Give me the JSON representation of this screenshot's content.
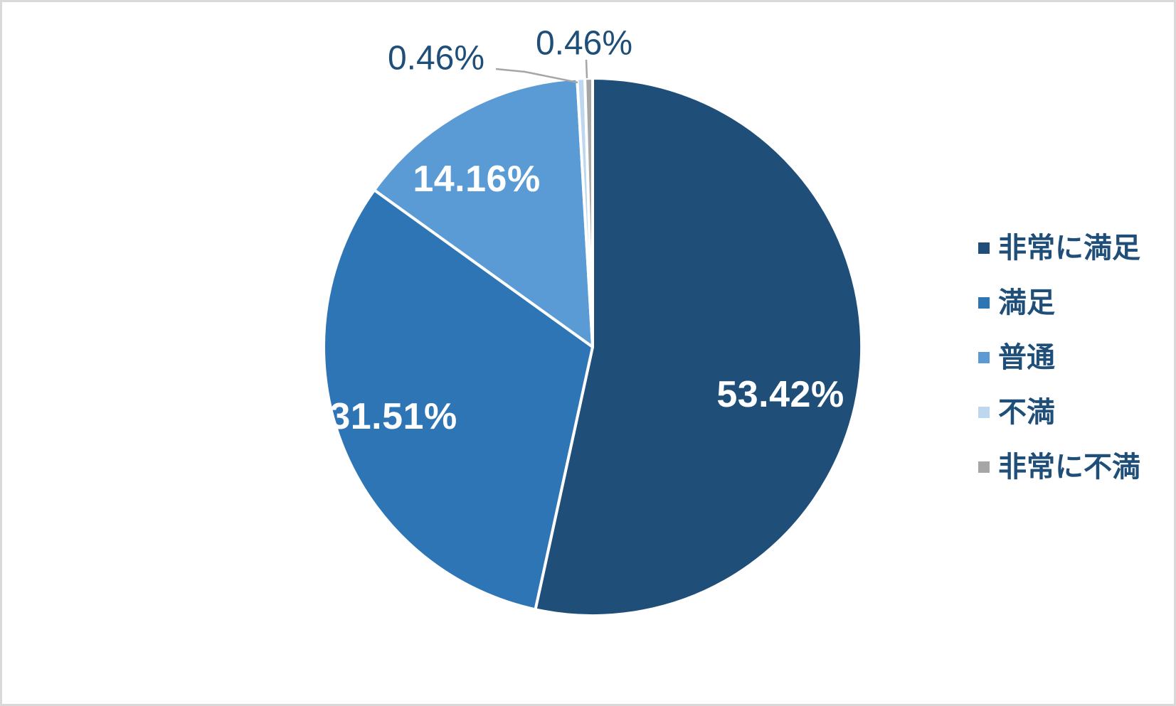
{
  "chart_data": {
    "type": "pie",
    "categories": [
      "非常に満足",
      "満足",
      "普通",
      "不満",
      "非常に不満"
    ],
    "values": [
      53.42,
      31.51,
      14.16,
      0.46,
      0.46
    ],
    "labels": [
      "53.42%",
      "31.51%",
      "14.16%",
      "0.46%",
      "0.46%"
    ],
    "colors": [
      "#1F4E79",
      "#2E75B6",
      "#5B9BD5",
      "#BDD7EE",
      "#A6A6A6"
    ],
    "unit": "%",
    "start_angle_deg": 0,
    "direction": "clockwise",
    "legend_position": "right",
    "slice_border_color": "#FFFFFF",
    "leader_line_color": "#A6A6A6",
    "label_color_inside": "#FFFFFF",
    "label_color_outside": "#1F4E79"
  },
  "legend": {
    "items": [
      {
        "label": "非常に満足",
        "color": "#1F4E79"
      },
      {
        "label": "満足",
        "color": "#2E75B6"
      },
      {
        "label": "普通",
        "color": "#5B9BD5"
      },
      {
        "label": "不満",
        "color": "#BDD7EE"
      },
      {
        "label": "非常に不満",
        "color": "#A6A6A6"
      }
    ]
  },
  "frame": {
    "background": "#FFFFFF",
    "border_color": "#D9D9D9"
  }
}
